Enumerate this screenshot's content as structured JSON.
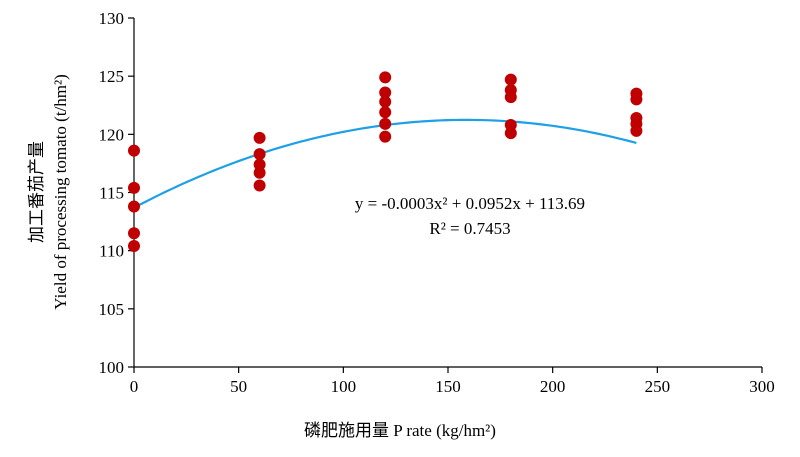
{
  "chart_data": {
    "type": "scatter",
    "title": "",
    "xlabel": "磷肥施用量 P rate (kg/hm²)",
    "ylabel_cn": "加工番茄产量",
    "ylabel_en": "Yield of processing tomato (t/hm²)",
    "xlim": [
      0,
      300
    ],
    "ylim": [
      100,
      130
    ],
    "x_ticks": [
      0,
      50,
      100,
      150,
      200,
      250,
      300
    ],
    "y_ticks": [
      100,
      105,
      110,
      115,
      120,
      125,
      130
    ],
    "grid": false,
    "legend": "none",
    "point_color": "#c00000",
    "fit_color": "#1ea0e6",
    "points": [
      {
        "x": 0,
        "y": 118.6
      },
      {
        "x": 0,
        "y": 115.4
      },
      {
        "x": 0,
        "y": 113.8
      },
      {
        "x": 0,
        "y": 111.5
      },
      {
        "x": 0,
        "y": 110.4
      },
      {
        "x": 60,
        "y": 119.7
      },
      {
        "x": 60,
        "y": 118.3
      },
      {
        "x": 60,
        "y": 117.4
      },
      {
        "x": 60,
        "y": 116.7
      },
      {
        "x": 60,
        "y": 115.6
      },
      {
        "x": 120,
        "y": 124.9
      },
      {
        "x": 120,
        "y": 123.6
      },
      {
        "x": 120,
        "y": 122.8
      },
      {
        "x": 120,
        "y": 121.9
      },
      {
        "x": 120,
        "y": 120.9
      },
      {
        "x": 120,
        "y": 119.8
      },
      {
        "x": 180,
        "y": 124.7
      },
      {
        "x": 180,
        "y": 123.8
      },
      {
        "x": 180,
        "y": 123.2
      },
      {
        "x": 180,
        "y": 120.8
      },
      {
        "x": 180,
        "y": 120.1
      },
      {
        "x": 240,
        "y": 123.5
      },
      {
        "x": 240,
        "y": 123.0
      },
      {
        "x": 240,
        "y": 121.4
      },
      {
        "x": 240,
        "y": 120.9
      },
      {
        "x": 240,
        "y": 120.3
      }
    ],
    "fit": {
      "a": -0.0003,
      "b": 0.0952,
      "c": 113.69,
      "x_range": [
        0,
        240
      ]
    },
    "equation": "y = -0.0003x² + 0.0952x + 113.69",
    "r_squared": "R² = 0.7453"
  }
}
